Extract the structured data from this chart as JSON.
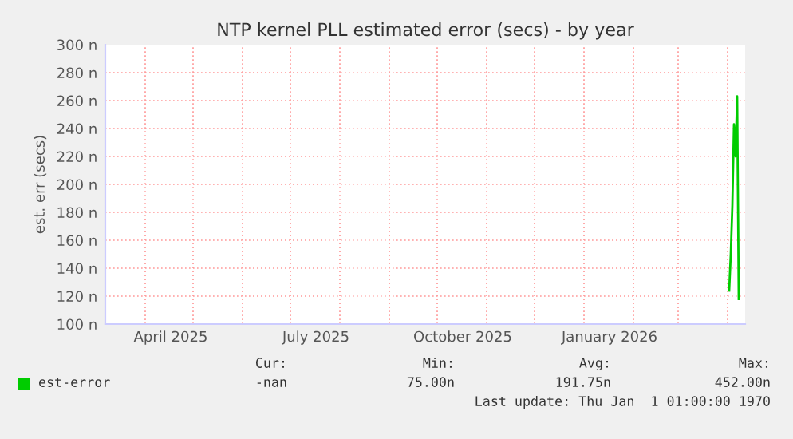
{
  "chart_data": {
    "type": "line",
    "title": "NTP kernel PLL estimated error (secs) - by year",
    "ylabel": "est. err (secs)",
    "x": [
      "2026-04-02",
      "2026-04-03",
      "2026-04-04",
      "2026-04-05",
      "2026-04-06",
      "2026-04-07",
      "2026-04-08"
    ],
    "series": [
      {
        "name": "est-error",
        "color": "#00cc00",
        "values": [
          124,
          150,
          185,
          243,
          220,
          263,
          118
        ]
      }
    ],
    "xlim": [
      "2025-03-07",
      "2026-04-12"
    ],
    "xticks": [
      {
        "value": "2025-04-01",
        "label": null
      },
      {
        "value": "2025-05-01",
        "label": null
      },
      {
        "value": "2025-06-01",
        "label": null
      },
      {
        "value": "2025-07-01",
        "label": null
      },
      {
        "value": "2025-08-01",
        "label": null
      },
      {
        "value": "2025-09-01",
        "label": null
      },
      {
        "value": "2025-10-01",
        "label": null
      },
      {
        "value": "2025-11-01",
        "label": null
      },
      {
        "value": "2025-12-01",
        "label": null
      },
      {
        "value": "2026-01-01",
        "label": null
      },
      {
        "value": "2026-02-01",
        "label": null
      },
      {
        "value": "2026-03-01",
        "label": null
      },
      {
        "value": "2026-04-01",
        "label": null
      },
      {
        "value": "2025-04-17",
        "label": "April 2025"
      },
      {
        "value": "2025-07-17",
        "label": "July 2025"
      },
      {
        "value": "2025-10-17",
        "label": "October 2025"
      },
      {
        "value": "2026-01-17",
        "label": "January 2026"
      }
    ],
    "ylim": [
      100,
      300
    ],
    "yticks": [
      {
        "value": 100,
        "label": "100 n"
      },
      {
        "value": 120,
        "label": "120 n"
      },
      {
        "value": 140,
        "label": "140 n"
      },
      {
        "value": 160,
        "label": "160 n"
      },
      {
        "value": 180,
        "label": "180 n"
      },
      {
        "value": 200,
        "label": "200 n"
      },
      {
        "value": 220,
        "label": "220 n"
      },
      {
        "value": 240,
        "label": "240 n"
      },
      {
        "value": 260,
        "label": "260 n"
      },
      {
        "value": 280,
        "label": "280 n"
      },
      {
        "value": 300,
        "label": "300 n"
      }
    ],
    "grid": true,
    "legend": "bottom",
    "annotations": [
      "Cur:",
      "Min:",
      "Avg:",
      "Max:",
      "-nan",
      "75.00n",
      "191.75n",
      "452.00n",
      "Last update: Thu Jan  1 01:00:00 1970"
    ]
  }
}
